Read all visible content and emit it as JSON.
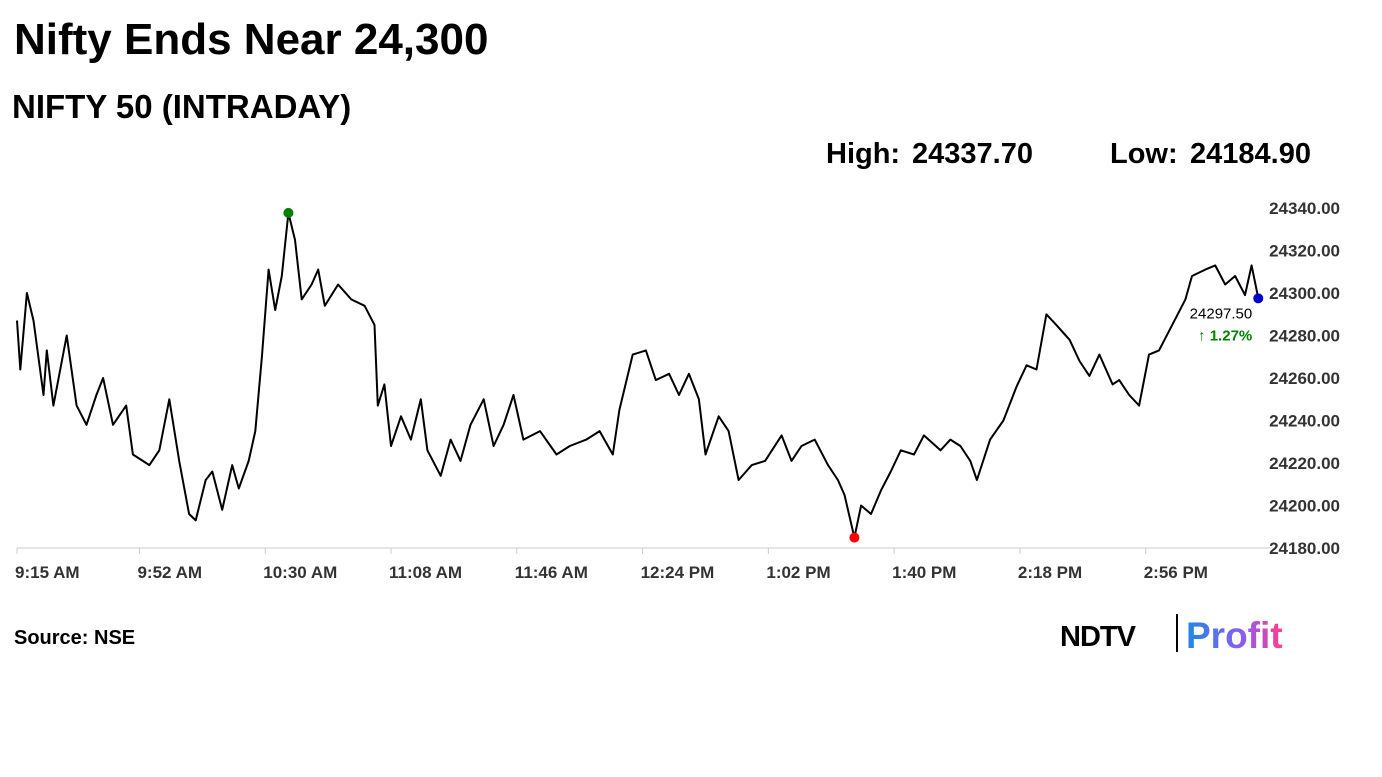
{
  "chart_data": {
    "type": "line",
    "title": "Nifty Ends Near 24,300",
    "subtitle": "NIFTY 50 (INTRADAY)",
    "source": "Source: NSE",
    "logo": {
      "brand": "NDTV",
      "product": "Profit"
    },
    "color": "#000000",
    "x": [
      "9:15 AM",
      "9:16 AM",
      "9:18 AM",
      "9:20 AM",
      "9:23 AM",
      "9:24 AM",
      "9:26 AM",
      "9:30 AM",
      "9:33 AM",
      "9:36 AM",
      "9:39 AM",
      "9:41 AM",
      "9:44 AM",
      "9:48 AM",
      "9:50 AM",
      "9:55 AM",
      "9:58 AM",
      "10:01 AM",
      "10:04 AM",
      "10:07 AM",
      "10:09 AM",
      "10:12 AM",
      "10:14 AM",
      "10:17 AM",
      "10:20 AM",
      "10:22 AM",
      "10:25 AM",
      "10:27 AM",
      "10:29 AM",
      "10:31 AM",
      "10:33 AM",
      "10:35 AM",
      "10:37 AM",
      "10:39 AM",
      "10:41 AM",
      "10:44 AM",
      "10:46 AM",
      "10:48 AM",
      "10:52 AM",
      "10:56 AM",
      "11:00 AM",
      "11:03 AM",
      "11:04 AM",
      "11:06 AM",
      "11:08 AM",
      "11:11 AM",
      "11:14 AM",
      "11:17 AM",
      "11:19 AM",
      "11:23 AM",
      "11:26 AM",
      "11:29 AM",
      "11:32 AM",
      "11:36 AM",
      "11:39 AM",
      "11:42 AM",
      "11:45 AM",
      "11:48 AM",
      "11:53 AM",
      "11:58 AM",
      "12:02 PM",
      "12:07 PM",
      "12:11 PM",
      "12:15 PM",
      "12:17 PM",
      "12:21 PM",
      "12:25 PM",
      "12:28 PM",
      "12:32 PM",
      "12:35 PM",
      "12:38 PM",
      "12:41 PM",
      "12:43 PM",
      "12:47 PM",
      "12:50 PM",
      "12:53 PM",
      "12:57 PM",
      "1:01 PM",
      "1:06 PM",
      "1:09 PM",
      "1:12 PM",
      "1:16 PM",
      "1:20 PM",
      "1:23 PM",
      "1:25 PM",
      "1:28 PM",
      "1:30 PM",
      "1:33 PM",
      "1:36 PM",
      "1:39 PM",
      "1:42 PM",
      "1:46 PM",
      "1:49 PM",
      "1:54 PM",
      "1:57 PM",
      "2:00 PM",
      "2:03 PM",
      "2:05 PM",
      "2:09 PM",
      "2:13 PM",
      "2:17 PM",
      "2:20 PM",
      "2:23 PM",
      "2:26 PM",
      "2:29 PM",
      "2:33 PM",
      "2:36 PM",
      "2:39 PM",
      "2:42 PM",
      "2:46 PM",
      "2:48 PM",
      "2:51 PM",
      "2:54 PM",
      "2:57 PM",
      "3:00 PM",
      "3:04 PM",
      "3:08 PM",
      "3:10 PM",
      "3:14 PM",
      "3:17 PM",
      "3:20 PM",
      "3:23 PM",
      "3:26 PM",
      "3:28 PM",
      "3:30 PM"
    ],
    "values": [
      24287,
      24264,
      24300,
      24287,
      24252,
      24273,
      24247,
      24280,
      24247,
      24238,
      24252,
      24260,
      24238,
      24247,
      24224,
      24219,
      24226,
      24250,
      24221,
      24196,
      24193,
      24212,
      24216,
      24198,
      24219,
      24208,
      24221,
      24235,
      24270,
      24311,
      24292,
      24308,
      24337.7,
      24325,
      24297,
      24304,
      24311,
      24294,
      24304,
      24297,
      24294,
      24285,
      24247,
      24257,
      24228,
      24242,
      24231,
      24250,
      24226,
      24214,
      24231,
      24221,
      24238,
      24250,
      24228,
      24238,
      24252,
      24231,
      24235,
      24224,
      24228,
      24231,
      24235,
      24224,
      24245,
      24271,
      24273,
      24259,
      24262,
      24252,
      24262,
      24250,
      24224,
      24242,
      24235,
      24212,
      24219,
      24221,
      24233,
      24221,
      24228,
      24231,
      24219,
      24212,
      24205,
      24184.9,
      24200,
      24196,
      24207,
      24216,
      24226,
      24224,
      24233,
      24226,
      24231,
      24228,
      24221,
      24212,
      24231,
      24240,
      24256,
      24266,
      24264,
      24290,
      24285,
      24278,
      24268,
      24261,
      24271,
      24257,
      24259,
      24252,
      24247,
      24271,
      24273,
      24285,
      24297,
      24308,
      24311,
      24313,
      24304,
      24308,
      24299,
      24313,
      24297.5
    ],
    "ylim": [
      24180,
      24340
    ],
    "yticks": [
      {
        "value": 24180,
        "label": "24180.00"
      },
      {
        "value": 24200,
        "label": "24200.00"
      },
      {
        "value": 24220,
        "label": "24220.00"
      },
      {
        "value": 24240,
        "label": "24240.00"
      },
      {
        "value": 24260,
        "label": "24260.00"
      },
      {
        "value": 24280,
        "label": "24280.00"
      },
      {
        "value": 24300,
        "label": "24300.00"
      },
      {
        "value": 24320,
        "label": "24320.00"
      },
      {
        "value": 24340,
        "label": "24340.00"
      }
    ],
    "xticks": [
      "9:15 AM",
      "9:52 AM",
      "10:30 AM",
      "11:08 AM",
      "11:46 AM",
      "12:24 PM",
      "1:02 PM",
      "1:40 PM",
      "2:18 PM",
      "2:56 PM"
    ],
    "high": {
      "label": "High:",
      "value": 24337.7,
      "value_label": "24337.70",
      "x": "10:37 AM",
      "color": "#008000"
    },
    "low": {
      "label": "Low:",
      "value": 24184.9,
      "value_label": "24184.90",
      "x": "1:28 PM",
      "color": "#ff0000"
    },
    "last": {
      "value": 24297.5,
      "value_label": "24297.50",
      "x": "3:30 PM",
      "color": "#0000cc"
    },
    "change": {
      "value": 1.27,
      "label": "↑ 1.27%",
      "color": "#008000"
    }
  }
}
